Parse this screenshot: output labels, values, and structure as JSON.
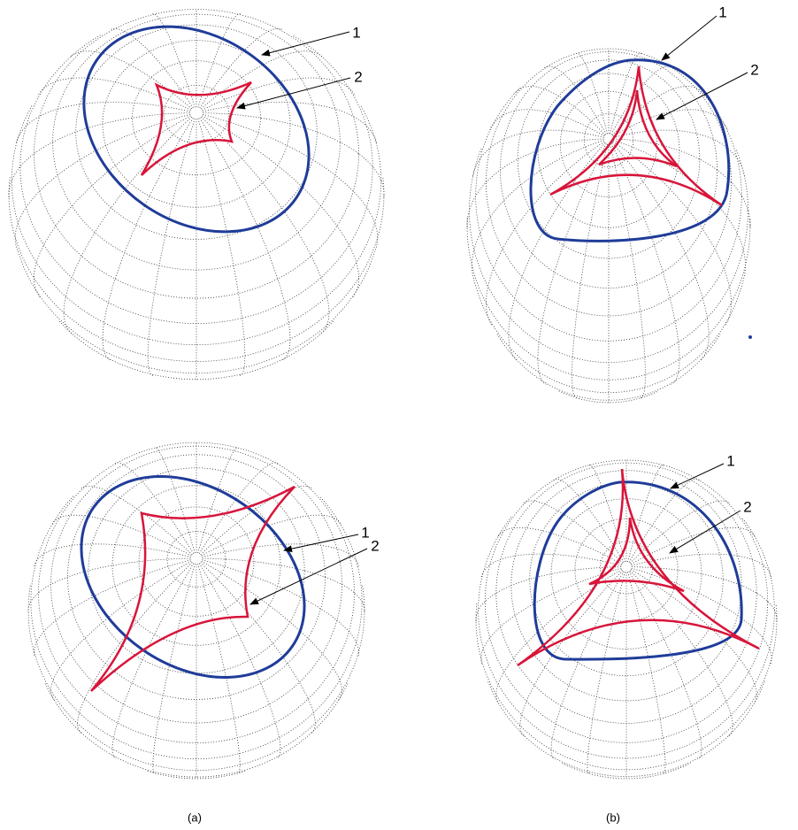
{
  "panels": [
    {
      "labels": [
        "1",
        "2"
      ]
    },
    {
      "labels": [
        "1",
        "2"
      ]
    },
    {
      "labels": [
        "1",
        "2"
      ]
    },
    {
      "labels": [
        "1",
        "2"
      ]
    }
  ],
  "captions": [
    "(a)",
    "(b)"
  ]
}
